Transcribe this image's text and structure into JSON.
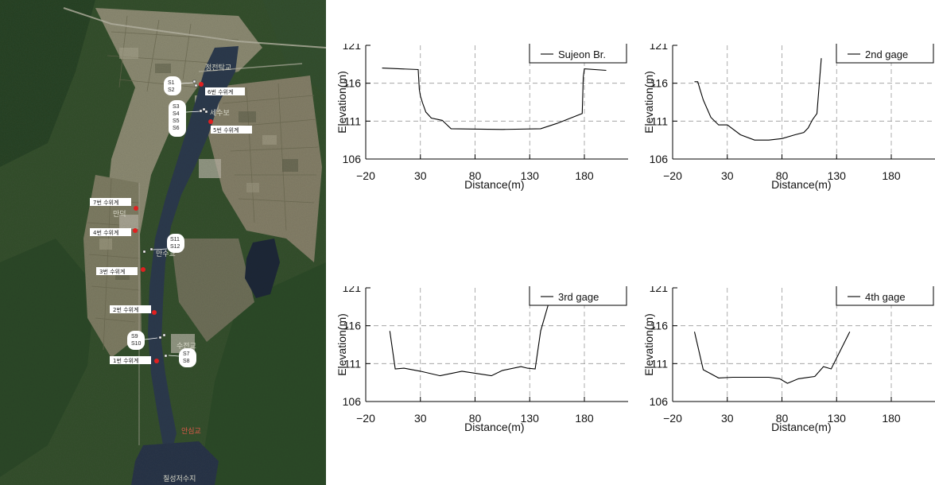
{
  "map": {
    "gauges": [
      {
        "label": "6번 수위계"
      },
      {
        "label": "5번 수위계"
      },
      {
        "label": "7번 수위계"
      },
      {
        "label": "4번 수위계"
      },
      {
        "label": "3번 수위계"
      },
      {
        "label": "2번 수위계"
      },
      {
        "label": "1번 수위계"
      }
    ],
    "sensors": [
      {
        "label": "S1\nS2"
      },
      {
        "label": "S3\nS4\nS5\nS6"
      },
      {
        "label": "S11\nS12"
      },
      {
        "label": "S9\nS10"
      },
      {
        "label": "S7\nS8"
      }
    ],
    "places": [
      "정전탁교",
      "세수보",
      "만수교",
      "만덕",
      "수전교",
      "안심교",
      "칠성저수지"
    ],
    "colors": {
      "gauge": "#e02020",
      "river": "#2f3f55",
      "forest": "#2f4a2a",
      "field": "#8c8a70"
    }
  },
  "chart_data": [
    {
      "type": "line",
      "legend": "Sujeon Br.",
      "legend_position": "top-right",
      "xlabel": "Distance(m)",
      "ylabel": "Elevation(m)",
      "xlim": [
        -20,
        220
      ],
      "ylim": [
        106,
        121
      ],
      "xticks": [
        "−20",
        "30",
        "80",
        "130",
        "180"
      ],
      "yticks": [
        "106",
        "111",
        "116",
        "121"
      ],
      "grid": true,
      "x": [
        -5,
        28,
        29,
        30,
        32,
        35,
        40,
        50,
        58,
        105,
        140,
        155,
        178,
        179,
        180,
        200
      ],
      "y": [
        118,
        117.8,
        115.2,
        114.3,
        113.4,
        112.2,
        111.4,
        111.1,
        110,
        109.9,
        110,
        110.7,
        112,
        116.8,
        117.9,
        117.7
      ]
    },
    {
      "type": "line",
      "legend": "2nd gage",
      "legend_position": "top-right",
      "xlabel": "Distance(m)",
      "ylabel": "Elevation(m)",
      "xlim": [
        -20,
        220
      ],
      "ylim": [
        106,
        121
      ],
      "xticks": [
        "−20",
        "30",
        "80",
        "130",
        "180"
      ],
      "yticks": [
        "106",
        "111",
        "116",
        "121"
      ],
      "grid": true,
      "x": [
        0,
        3,
        5,
        8,
        15,
        22,
        30,
        42,
        55,
        68,
        80,
        92,
        100,
        104,
        108,
        112,
        116
      ],
      "y": [
        116.2,
        116.2,
        115.2,
        113.8,
        111.5,
        110.5,
        110.5,
        109.2,
        108.5,
        108.5,
        108.7,
        109.2,
        109.5,
        110.1,
        111.2,
        112.0,
        119.3
      ]
    },
    {
      "type": "line",
      "legend": "3rd gage",
      "legend_position": "top-right",
      "xlabel": "Distance(m)",
      "ylabel": "Elevation(m)",
      "xlim": [
        -20,
        220
      ],
      "ylim": [
        106,
        121
      ],
      "xticks": [
        "−20",
        "30",
        "80",
        "130",
        "180"
      ],
      "yticks": [
        "106",
        "111",
        "116",
        "121"
      ],
      "grid": true,
      "x": [
        2,
        7,
        15,
        30,
        48,
        68,
        95,
        105,
        122,
        128,
        135,
        140,
        148,
        160
      ],
      "y": [
        115.3,
        110.3,
        110.4,
        110.0,
        109.4,
        110.0,
        109.4,
        110.1,
        110.6,
        110.4,
        110.3,
        115.3,
        119.3,
        121
      ]
    },
    {
      "type": "line",
      "legend": "4th gage",
      "legend_position": "top-right",
      "xlabel": "Distance(m)",
      "ylabel": "Elevation(m)",
      "xlim": [
        -20,
        220
      ],
      "ylim": [
        106,
        121
      ],
      "xticks": [
        "−20",
        "30",
        "80",
        "130",
        "180"
      ],
      "yticks": [
        "106",
        "111",
        "116",
        "121"
      ],
      "grid": true,
      "x": [
        0,
        8,
        22,
        35,
        55,
        68,
        78,
        85,
        95,
        110,
        118,
        125,
        142
      ],
      "y": [
        115.2,
        110.2,
        109.1,
        109.2,
        109.2,
        109.2,
        109.0,
        108.4,
        109.0,
        109.3,
        110.6,
        110.3,
        115.2
      ]
    }
  ]
}
